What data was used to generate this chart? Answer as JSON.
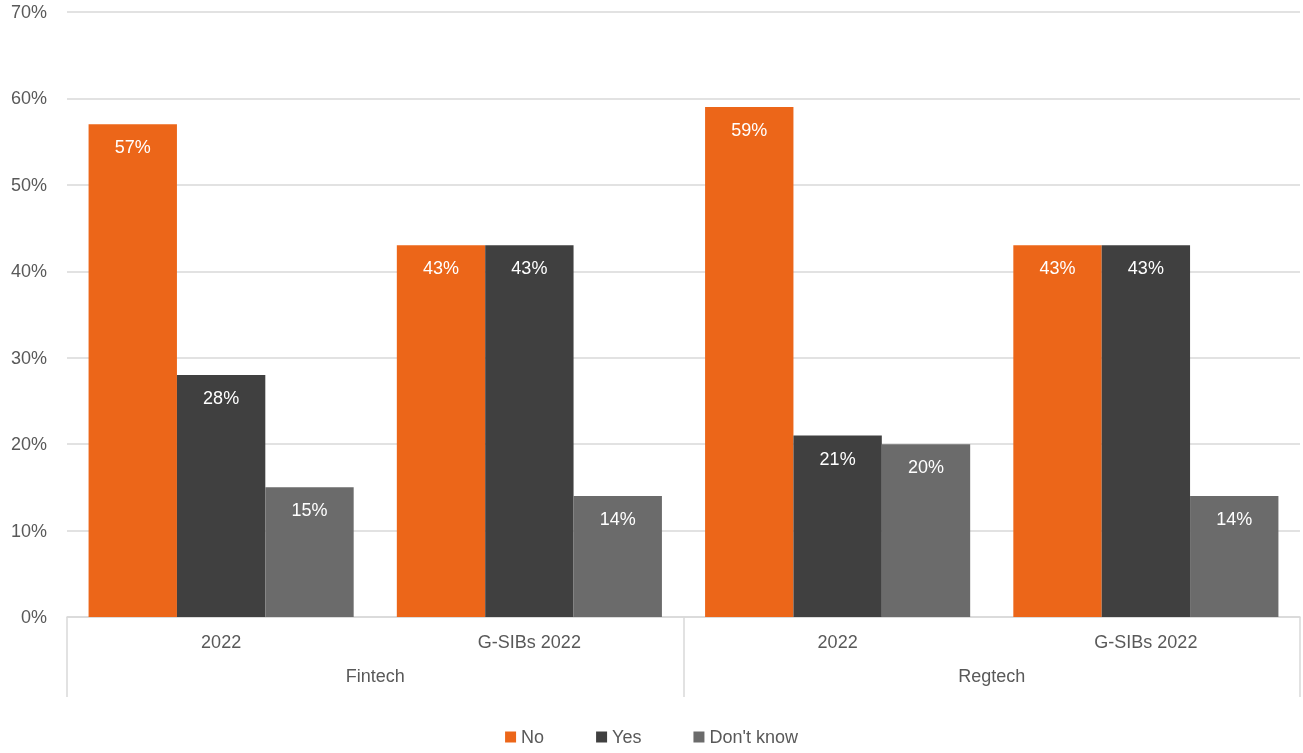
{
  "chart_data": {
    "type": "bar",
    "categories": [
      "2022",
      "G-SIBs 2022",
      "2022",
      "G-SIBs 2022"
    ],
    "annotations": [
      "Fintech",
      "Regtech"
    ],
    "series": [
      {
        "name": "No",
        "color": "#ec6619",
        "values": [
          57,
          43,
          59,
          43
        ],
        "value_labels": [
          "57%",
          "43%",
          "59%",
          "43%"
        ]
      },
      {
        "name": "Yes",
        "color": "#404040",
        "values": [
          28,
          43,
          21,
          43
        ],
        "value_labels": [
          "28%",
          "43%",
          "21%",
          "43%"
        ]
      },
      {
        "name": "Don't know",
        "color": "#6b6b6b",
        "values": [
          15,
          14,
          20,
          14
        ],
        "value_labels": [
          "15%",
          "14%",
          "20%",
          "14%"
        ]
      }
    ],
    "ylim": [
      0,
      70
    ],
    "yticks": [
      {
        "value": 0,
        "label": "0%"
      },
      {
        "value": 10,
        "label": "10%"
      },
      {
        "value": 20,
        "label": "20%"
      },
      {
        "value": 30,
        "label": "30%"
      },
      {
        "value": 40,
        "label": "40%"
      },
      {
        "value": 50,
        "label": "50%"
      },
      {
        "value": 60,
        "label": "60%"
      },
      {
        "value": 70,
        "label": "70%"
      }
    ],
    "grid": "y",
    "legend": "bottom"
  }
}
